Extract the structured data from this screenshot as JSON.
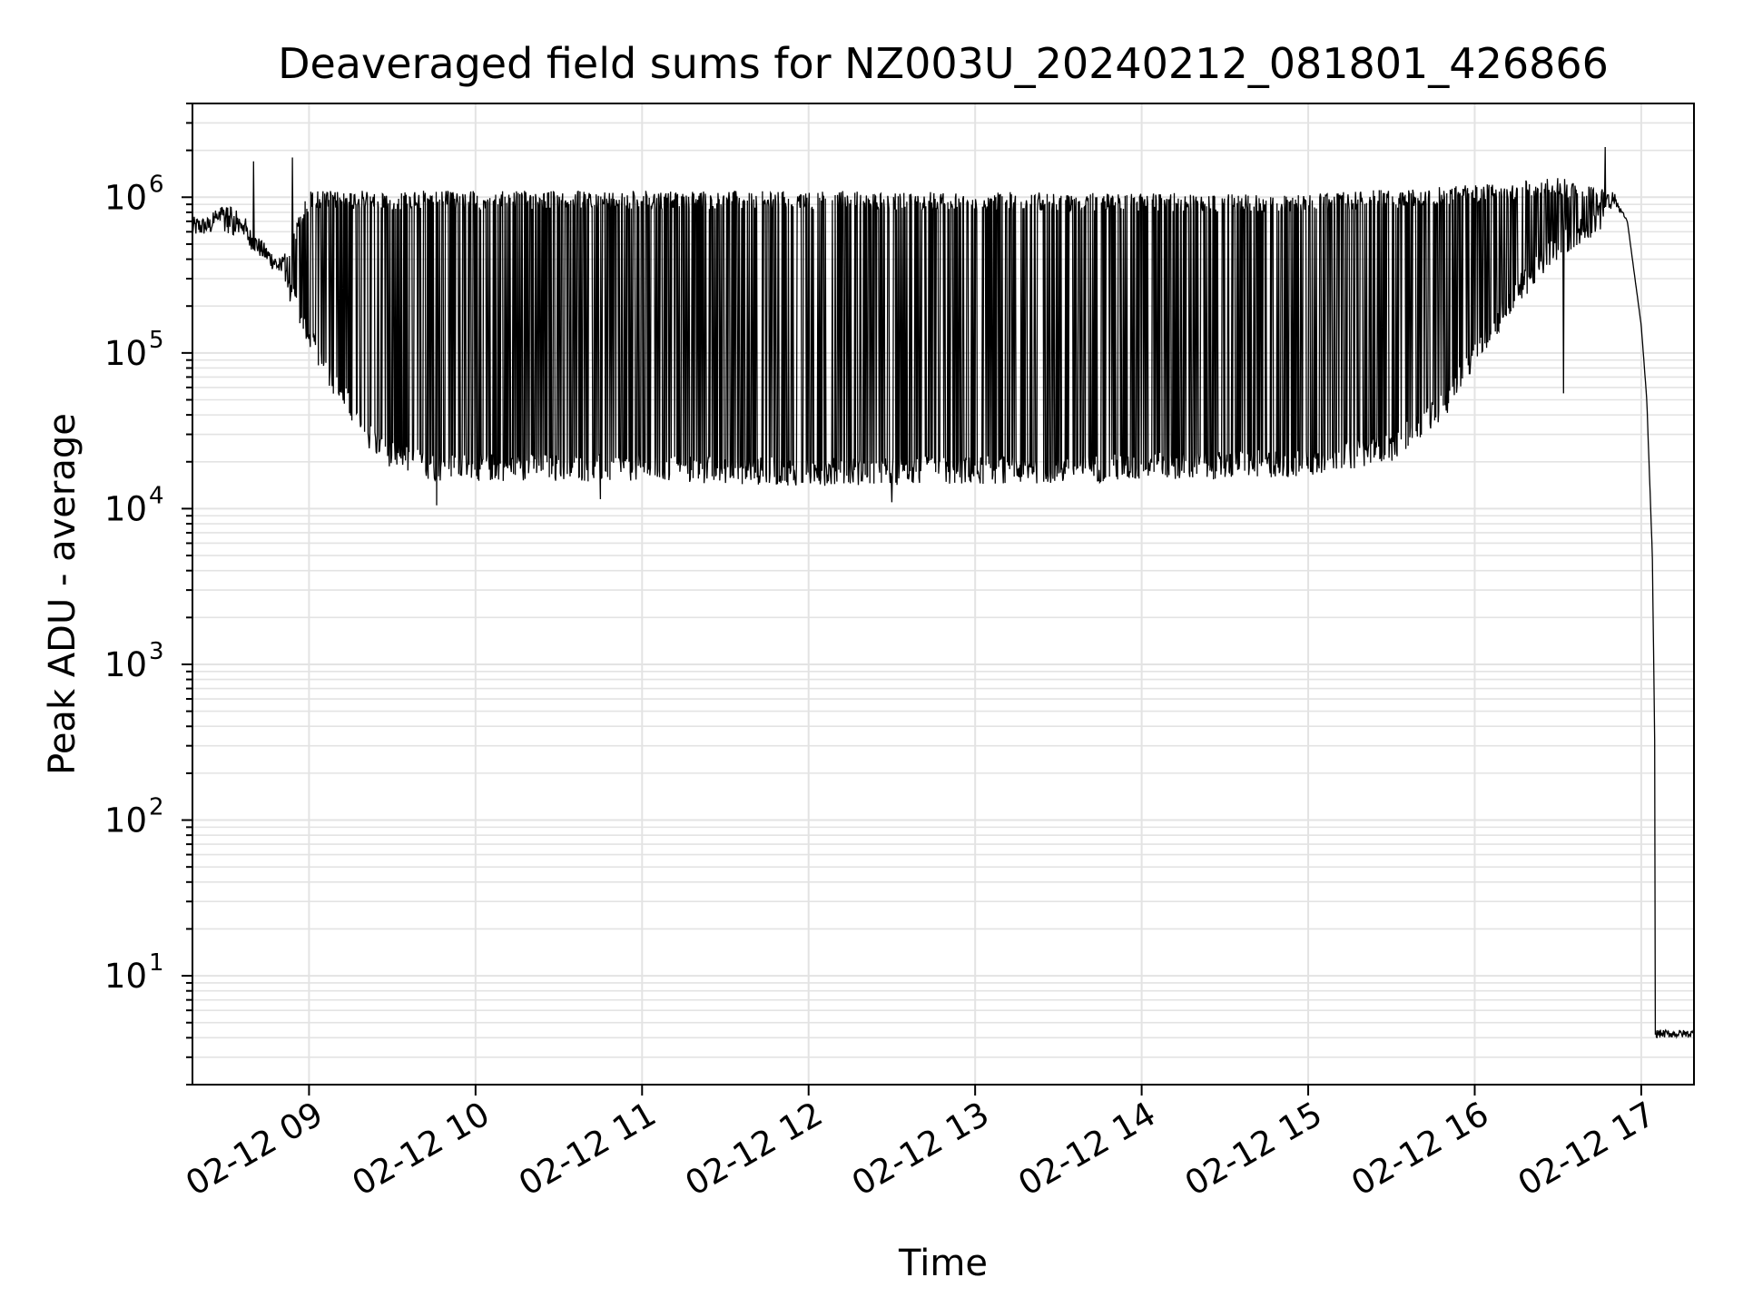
{
  "chart_data": {
    "type": "line",
    "title": "Deaveraged field sums for NZ003U_20240212_081801_426866",
    "xlabel": "Time",
    "ylabel": "Peak ADU - average",
    "yscale": "log",
    "xlim": [
      "2024-02-12T08:18",
      "2024-02-12T17:19"
    ],
    "ylim": [
      2,
      4000000
    ],
    "grid": true,
    "x_ticks": [
      "02-12 09",
      "02-12 10",
      "02-12 11",
      "02-12 12",
      "02-12 13",
      "02-12 14",
      "02-12 15",
      "02-12 16",
      "02-12 17"
    ],
    "y_ticks": [
      {
        "base": "10",
        "exp": "1",
        "value": 10
      },
      {
        "base": "10",
        "exp": "2",
        "value": 100
      },
      {
        "base": "10",
        "exp": "3",
        "value": 1000
      },
      {
        "base": "10",
        "exp": "4",
        "value": 10000
      },
      {
        "base": "10",
        "exp": "5",
        "value": 100000
      },
      {
        "base": "10",
        "exp": "6",
        "value": 1000000
      }
    ],
    "series": [
      {
        "color": "#000000",
        "upper_envelope": [
          [
            "2024-02-12T08:18",
            750000
          ],
          [
            "2024-02-12T08:24",
            750000
          ],
          [
            "2024-02-12T08:30",
            1000000
          ],
          [
            "2024-02-12T08:40",
            600000
          ],
          [
            "2024-02-12T08:50",
            400000
          ],
          [
            "2024-02-12T09:00",
            1100000
          ],
          [
            "2024-02-12T09:30",
            1100000
          ],
          [
            "2024-02-12T12:00",
            1100000
          ],
          [
            "2024-02-12T15:00",
            1050000
          ],
          [
            "2024-02-12T16:00",
            1200000
          ],
          [
            "2024-02-12T16:30",
            1350000
          ],
          [
            "2024-02-12T16:50",
            1100000
          ],
          [
            "2024-02-12T16:55",
            700000
          ],
          [
            "2024-02-12T17:00",
            150000
          ],
          [
            "2024-02-12T17:02",
            50000
          ],
          [
            "2024-02-12T17:04",
            5000
          ],
          [
            "2024-02-12T17:05",
            200
          ],
          [
            "2024-02-12T17:05",
            4.5
          ],
          [
            "2024-02-12T17:19",
            4.5
          ]
        ],
        "lower_envelope": [
          [
            "2024-02-12T08:18",
            550000
          ],
          [
            "2024-02-12T08:30",
            600000
          ],
          [
            "2024-02-12T08:40",
            450000
          ],
          [
            "2024-02-12T08:50",
            300000
          ],
          [
            "2024-02-12T09:00",
            100000
          ],
          [
            "2024-02-12T09:10",
            50000
          ],
          [
            "2024-02-12T09:20",
            25000
          ],
          [
            "2024-02-12T09:30",
            18000
          ],
          [
            "2024-02-12T09:45",
            15000
          ],
          [
            "2024-02-12T10:30",
            15000
          ],
          [
            "2024-02-12T12:00",
            14000
          ],
          [
            "2024-02-12T13:30",
            14500
          ],
          [
            "2024-02-12T15:00",
            16000
          ],
          [
            "2024-02-12T15:30",
            20000
          ],
          [
            "2024-02-12T15:50",
            40000
          ],
          [
            "2024-02-12T16:00",
            80000
          ],
          [
            "2024-02-12T16:15",
            200000
          ],
          [
            "2024-02-12T16:30",
            400000
          ],
          [
            "2024-02-12T16:45",
            600000
          ],
          [
            "2024-02-12T16:50",
            900000
          ],
          [
            "2024-02-12T16:55",
            700000
          ],
          [
            "2024-02-12T17:00",
            150000
          ],
          [
            "2024-02-12T17:02",
            50000
          ],
          [
            "2024-02-12T17:04",
            5000
          ],
          [
            "2024-02-12T17:05",
            200
          ],
          [
            "2024-02-12T17:05",
            4
          ],
          [
            "2024-02-12T17:19",
            4
          ]
        ],
        "spikes": [
          [
            "2024-02-12T08:40",
            1700000
          ],
          [
            "2024-02-12T08:54",
            1800000
          ],
          [
            "2024-02-12T09:46",
            10500
          ],
          [
            "2024-02-12T10:45",
            11500
          ],
          [
            "2024-02-12T12:30",
            11000
          ],
          [
            "2024-02-12T16:47",
            2100000
          ],
          [
            "2024-02-12T16:32",
            55000
          ]
        ]
      }
    ]
  }
}
